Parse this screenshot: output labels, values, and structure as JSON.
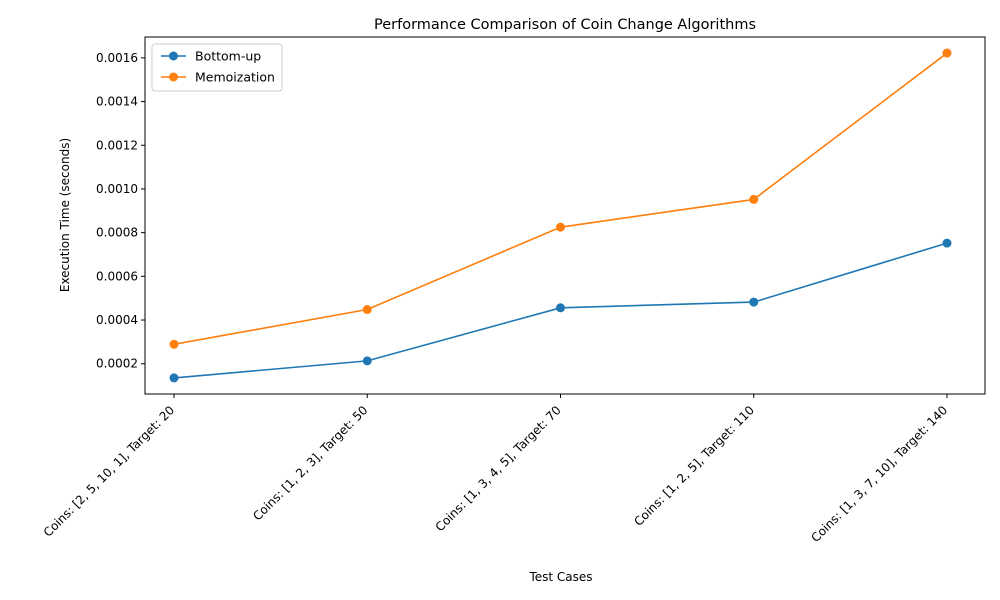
{
  "chart_data": {
    "type": "line",
    "title": "Performance Comparison of Coin Change Algorithms",
    "xlabel": "Test Cases",
    "ylabel": "Execution Time (seconds)",
    "categories": [
      "Coins: [2, 5, 10, 1], Target: 20",
      "Coins: [1, 2, 3], Target: 50",
      "Coins: [1, 3, 4, 5], Target: 70",
      "Coins: [1, 2, 5], Target: 110",
      "Coins: [1, 3, 7, 10], Target: 140"
    ],
    "series": [
      {
        "name": "Bottom-up",
        "color": "#1f77b4",
        "values": [
          0.000135,
          0.000213,
          0.000456,
          0.000482,
          0.000752
        ]
      },
      {
        "name": "Memoization",
        "color": "#ff7f0e",
        "values": [
          0.000289,
          0.000448,
          0.000825,
          0.000952,
          0.001622
        ]
      }
    ],
    "yticks": [
      "0.0002",
      "0.0004",
      "0.0006",
      "0.0008",
      "0.0010",
      "0.0012",
      "0.0014",
      "0.0016"
    ],
    "ylim": [
      6.14e-05,
      0.0016955
    ],
    "grid": false,
    "legend": "top-left"
  }
}
